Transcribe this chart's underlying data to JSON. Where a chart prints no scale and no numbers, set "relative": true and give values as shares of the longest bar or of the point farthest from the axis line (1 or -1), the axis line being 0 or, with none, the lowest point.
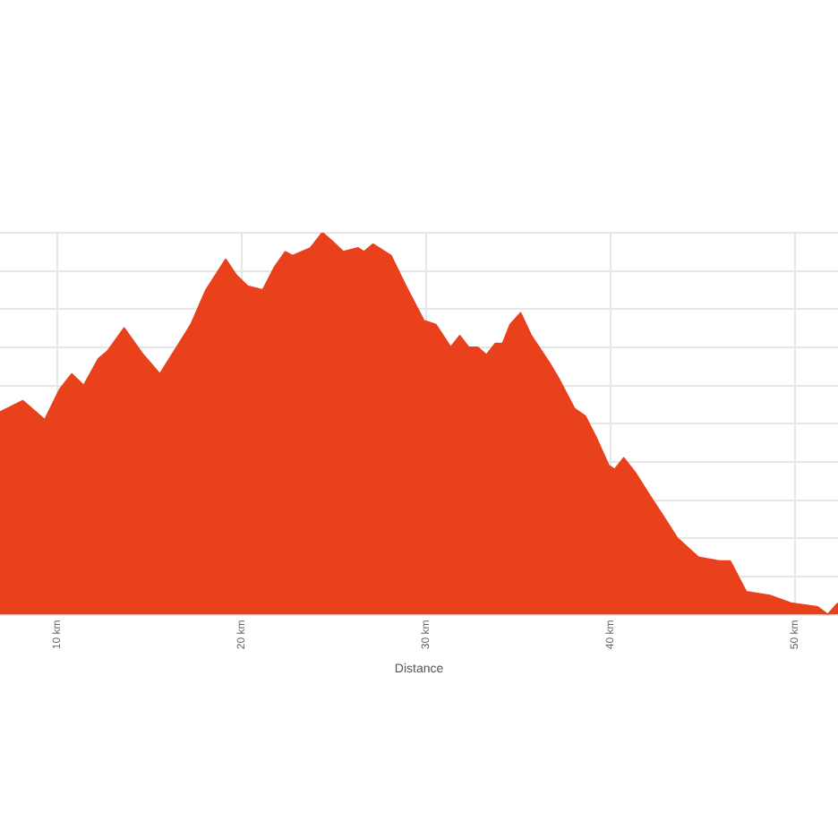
{
  "chart_data": {
    "type": "area",
    "xlabel": "Distance",
    "relative": true,
    "grid": true,
    "legend": false,
    "marker": "none",
    "tick_labels": "x",
    "xlim": [
      6.89,
      52.33
    ],
    "xticks": [
      {
        "value": 10,
        "label": "10 km"
      },
      {
        "value": 20,
        "label": "20 km"
      },
      {
        "value": 30,
        "label": "30 km"
      },
      {
        "value": 40,
        "label": "40 km"
      },
      {
        "value": 50,
        "label": "50 km"
      }
    ],
    "x": [
      6.89,
      8.13,
      9.32,
      10.13,
      10.78,
      11.43,
      12.23,
      12.72,
      13.62,
      14.66,
      15.56,
      16.6,
      17.25,
      18.06,
      19.13,
      19.68,
      20.32,
      21.14,
      21.78,
      22.36,
      22.75,
      23.72,
      24.37,
      24.85,
      25.5,
      26.31,
      26.63,
      27.12,
      28.09,
      28.9,
      29.22,
      29.87,
      30.51,
      31.33,
      31.82,
      32.3,
      32.79,
      33.27,
      33.76,
      34.15,
      34.56,
      35.12,
      35.7,
      36.67,
      37.16,
      38.03,
      38.62,
      39.25,
      39.9,
      40.22,
      40.71,
      41.36,
      42.01,
      42.82,
      43.62,
      44.76,
      45.89,
      46.48,
      47.35,
      48.64,
      49.78,
      51.23,
      51.78,
      52.33
    ],
    "series": [
      {
        "color": "#e8411c",
        "values": [
          0.53,
          0.56,
          0.51,
          0.59,
          0.63,
          0.6,
          0.67,
          0.69,
          0.75,
          0.68,
          0.63,
          0.71,
          0.76,
          0.85,
          0.93,
          0.89,
          0.86,
          0.85,
          0.91,
          0.95,
          0.94,
          0.96,
          1,
          0.98,
          0.95,
          0.96,
          0.95,
          0.97,
          0.94,
          0.86,
          0.83,
          0.77,
          0.76,
          0.7,
          0.73,
          0.7,
          0.7,
          0.68,
          0.71,
          0.71,
          0.76,
          0.79,
          0.73,
          0.66,
          0.62,
          0.54,
          0.52,
          0.46,
          0.39,
          0.38,
          0.41,
          0.37,
          0.32,
          0.26,
          0.2,
          0.15,
          0.14,
          0.14,
          0.06,
          0.05,
          0.03,
          0.02,
          0,
          0.03
        ]
      }
    ]
  }
}
